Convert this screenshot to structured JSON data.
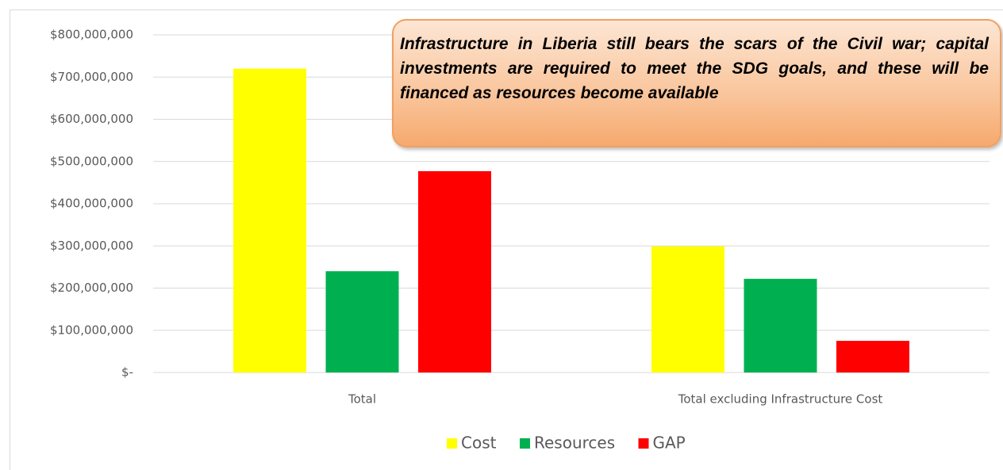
{
  "chart_data": {
    "type": "bar",
    "annotation": "Infrastructure in Liberia still bears the scars of the Civil war; capital investments are required to meet the SDG goals, and these will be financed as resources become available",
    "categories": [
      "Total",
      "Total excluding Infrastructure Cost"
    ],
    "series": [
      {
        "name": "Cost",
        "color": "#ffff00",
        "values": [
          720000000,
          299000000
        ]
      },
      {
        "name": "Resources",
        "color": "#00b050",
        "values": [
          240000000,
          222000000
        ]
      },
      {
        "name": "GAP",
        "color": "#ff0000",
        "values": [
          477000000,
          75000000
        ]
      }
    ],
    "ylim": [
      0,
      800000000
    ],
    "yticks": [
      {
        "value": 0,
        "label": "$-"
      },
      {
        "value": 100000000,
        "label": "$100,000,000"
      },
      {
        "value": 200000000,
        "label": "$200,000,000"
      },
      {
        "value": 300000000,
        "label": "$300,000,000"
      },
      {
        "value": 400000000,
        "label": "$400,000,000"
      },
      {
        "value": 500000000,
        "label": "$500,000,000"
      },
      {
        "value": 600000000,
        "label": "$600,000,000"
      },
      {
        "value": 700000000,
        "label": "$700,000,000"
      },
      {
        "value": 800000000,
        "label": "$800,000,000"
      }
    ],
    "grid": true,
    "legend": "bottom"
  }
}
